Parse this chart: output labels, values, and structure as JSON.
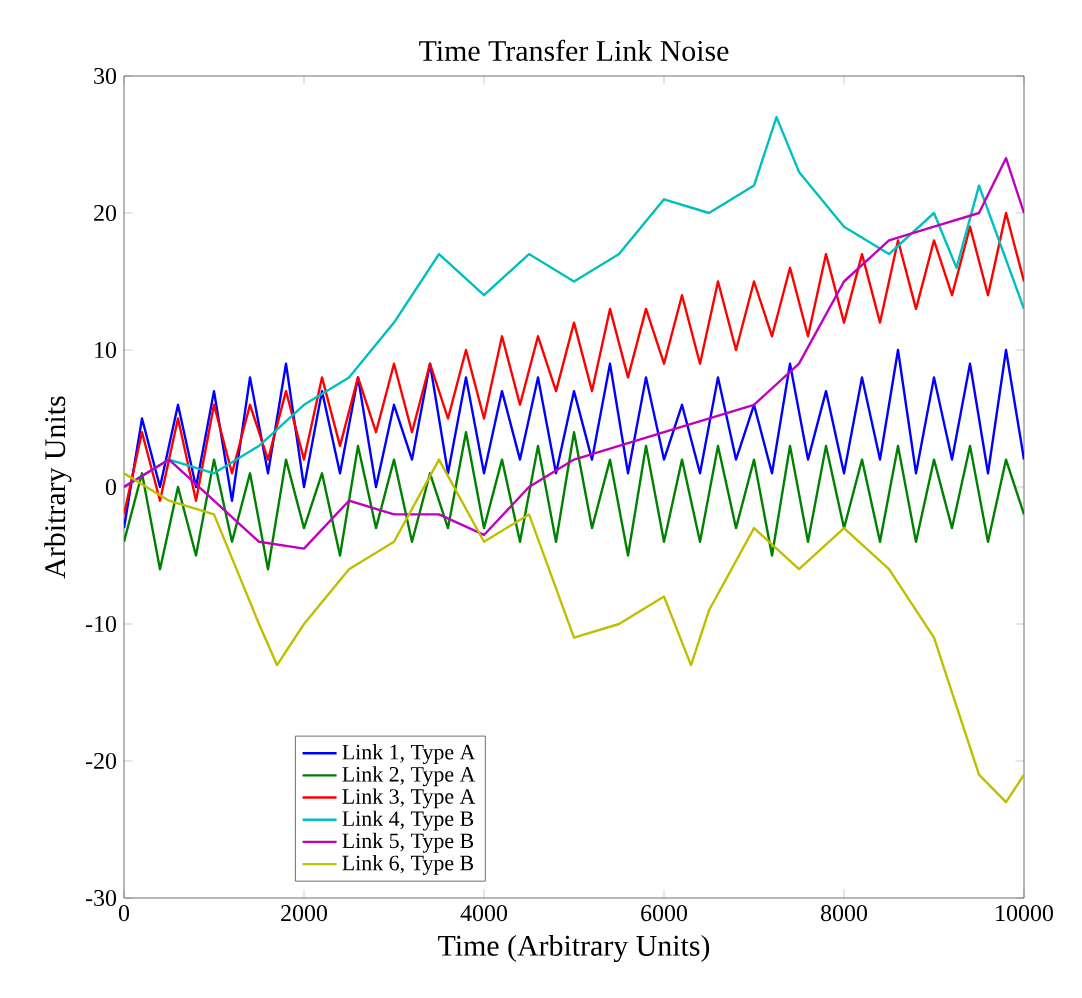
{
  "chart_data": {
    "type": "line",
    "title": "Time Transfer Link Noise",
    "xlabel": "Time (Arbitrary Units)",
    "ylabel": "Arbitrary Units",
    "xlim": [
      0,
      10000
    ],
    "ylim": [
      -30,
      30
    ],
    "xticks": [
      0,
      2000,
      4000,
      6000,
      8000,
      10000
    ],
    "yticks": [
      -30,
      -20,
      -10,
      0,
      10,
      20,
      30
    ],
    "grid": false,
    "legend": "bottom left",
    "marker": "none",
    "line_style": "solid",
    "x": [
      0,
      200,
      400,
      600,
      800,
      1000,
      1200,
      1400,
      1600,
      1800,
      2000,
      2200,
      2400,
      2600,
      2800,
      3000,
      3200,
      3400,
      3600,
      3800,
      4000,
      4200,
      4400,
      4600,
      4800,
      5000,
      5200,
      5400,
      5600,
      5800,
      6000,
      6200,
      6400,
      6600,
      6800,
      7000,
      7200,
      7400,
      7600,
      7800,
      8000,
      8200,
      8400,
      8600,
      8800,
      9000,
      9200,
      9400,
      9600,
      9800,
      10000
    ],
    "series": [
      {
        "name": "Link 1, Type A",
        "color": "#0000ff",
        "values": [
          -3,
          5,
          0,
          6,
          0,
          7,
          -1,
          8,
          1,
          9,
          0,
          7,
          1,
          8,
          0,
          6,
          2,
          9,
          1,
          8,
          1,
          7,
          2,
          8,
          1,
          7,
          2,
          9,
          1,
          8,
          2,
          6,
          1,
          8,
          2,
          6,
          1,
          9,
          2,
          7,
          1,
          8,
          2,
          10,
          1,
          8,
          2,
          9,
          1,
          10,
          2
        ]
      },
      {
        "name": "Link 2, Type A",
        "color": "#008000",
        "values": [
          -4,
          1,
          -6,
          0,
          -5,
          2,
          -4,
          1,
          -6,
          2,
          -3,
          1,
          -5,
          3,
          -3,
          2,
          -4,
          1,
          -3,
          4,
          -3,
          2,
          -4,
          3,
          -4,
          4,
          -3,
          2,
          -5,
          3,
          -4,
          2,
          -4,
          3,
          -3,
          2,
          -5,
          3,
          -4,
          3,
          -3,
          2,
          -4,
          3,
          -4,
          2,
          -3,
          3,
          -4,
          2,
          -2
        ]
      },
      {
        "name": "Link 3, Type A",
        "color": "#ff0000",
        "values": [
          -2,
          4,
          -1,
          5,
          -1,
          6,
          1,
          6,
          2,
          7,
          2,
          8,
          3,
          8,
          4,
          9,
          4,
          9,
          5,
          10,
          5,
          11,
          6,
          11,
          7,
          12,
          7,
          13,
          8,
          13,
          9,
          14,
          9,
          15,
          10,
          15,
          11,
          16,
          11,
          17,
          12,
          17,
          12,
          18,
          13,
          18,
          14,
          19,
          14,
          20,
          15
        ]
      },
      {
        "name": "Link 4, Type B",
        "color": "#00bfbf",
        "x": [
          0,
          500,
          1000,
          1500,
          2000,
          2500,
          3000,
          3500,
          4000,
          4500,
          5000,
          5500,
          6000,
          6500,
          7000,
          7250,
          7500,
          8000,
          8500,
          9000,
          9250,
          9500,
          10000
        ],
        "values": [
          0,
          2,
          1,
          3,
          6,
          8,
          12,
          17,
          14,
          17,
          15,
          17,
          21,
          20,
          22,
          27,
          23,
          19,
          17,
          20,
          16,
          22,
          13
        ]
      },
      {
        "name": "Link 5, Type B",
        "color": "#bf00bf",
        "x": [
          0,
          500,
          1000,
          1500,
          2000,
          2500,
          3000,
          3500,
          4000,
          4500,
          5000,
          5500,
          6000,
          6500,
          7000,
          7500,
          8000,
          8500,
          9000,
          9500,
          9800,
          10000
        ],
        "values": [
          0,
          2,
          -1,
          -4,
          -4.5,
          -1,
          -2,
          -2,
          -3.5,
          0,
          2,
          3,
          4,
          5,
          6,
          9,
          15,
          18,
          19,
          20,
          24,
          20
        ]
      },
      {
        "name": "Link 6, Type B",
        "color": "#bfbf00",
        "x": [
          0,
          500,
          1000,
          1500,
          1700,
          2000,
          2500,
          3000,
          3500,
          4000,
          4500,
          5000,
          5500,
          6000,
          6300,
          6500,
          7000,
          7500,
          8000,
          8500,
          9000,
          9500,
          9800,
          10000
        ],
        "values": [
          1,
          -1,
          -2,
          -10,
          -13,
          -10,
          -6,
          -4,
          2,
          -4,
          -2,
          -11,
          -10,
          -8,
          -13,
          -9,
          -3,
          -6,
          -3,
          -6,
          -11,
          -21,
          -23,
          -21
        ]
      }
    ]
  }
}
